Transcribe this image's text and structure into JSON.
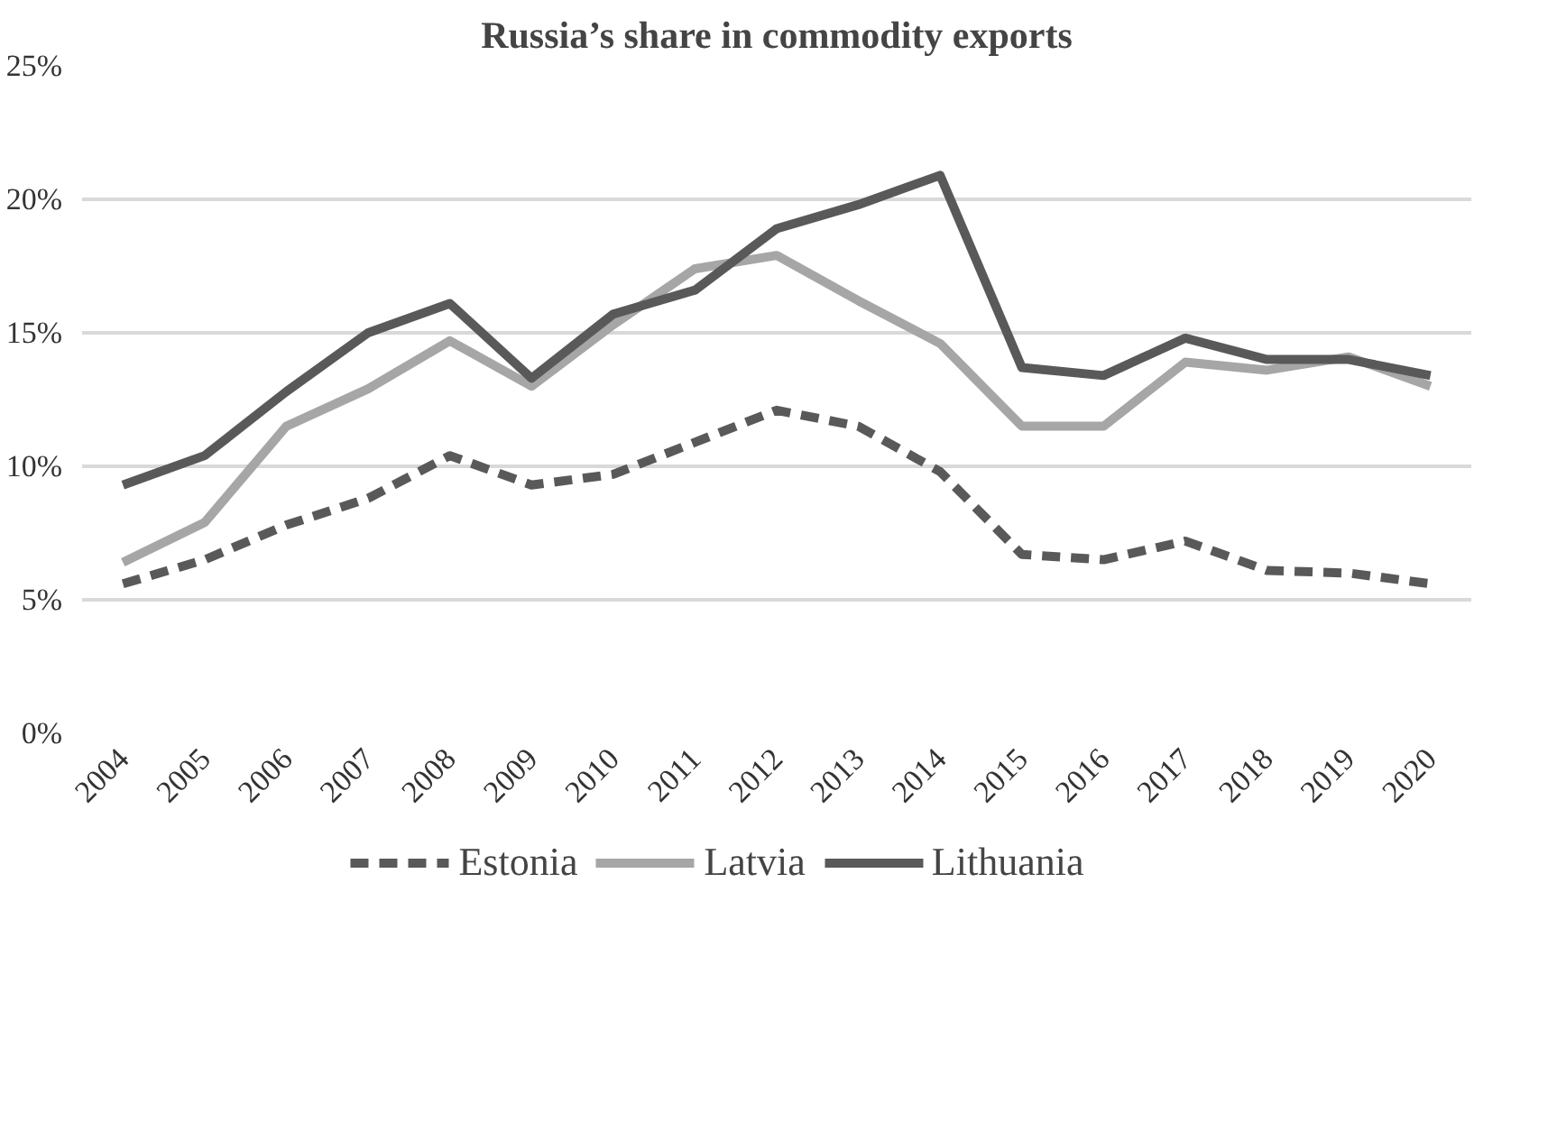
{
  "chart_data": {
    "type": "line",
    "title": "Russia’s share in commodity exports",
    "categories": [
      "2004",
      "2005",
      "2006",
      "2007",
      "2008",
      "2009",
      "2010",
      "2011",
      "2012",
      "2013",
      "2014",
      "2015",
      "2016",
      "2017",
      "2018",
      "2019",
      "2020"
    ],
    "series": [
      {
        "name": "Estonia",
        "color": "#595959",
        "line_style": "dashed",
        "values": [
          5.6,
          6.5,
          7.8,
          8.8,
          10.4,
          9.3,
          9.7,
          10.9,
          12.1,
          11.5,
          9.8,
          6.7,
          6.5,
          7.2,
          6.1,
          6.0,
          5.6
        ]
      },
      {
        "name": "Latvia",
        "color": "#a6a6a6",
        "line_style": "solid",
        "values": [
          6.4,
          7.9,
          11.5,
          12.9,
          14.7,
          13.0,
          15.3,
          17.4,
          17.9,
          16.2,
          14.6,
          11.5,
          11.5,
          13.9,
          13.6,
          14.1,
          13.0
        ]
      },
      {
        "name": "Lithuania",
        "color": "#595959",
        "line_style": "solid",
        "values": [
          9.3,
          10.4,
          12.8,
          15.0,
          16.1,
          13.3,
          15.7,
          16.6,
          18.9,
          19.8,
          20.9,
          13.7,
          13.4,
          14.8,
          14.0,
          14.0,
          13.4
        ]
      }
    ],
    "ylim": [
      0,
      25
    ],
    "yticks": [
      {
        "value": 0,
        "label": "0%"
      },
      {
        "value": 5,
        "label": "5%"
      },
      {
        "value": 10,
        "label": "10%"
      },
      {
        "value": 15,
        "label": "15%"
      },
      {
        "value": 20,
        "label": "20%"
      },
      {
        "value": 25,
        "label": "25%"
      }
    ],
    "grid": "y",
    "legend": "bottom",
    "marker": "none"
  }
}
